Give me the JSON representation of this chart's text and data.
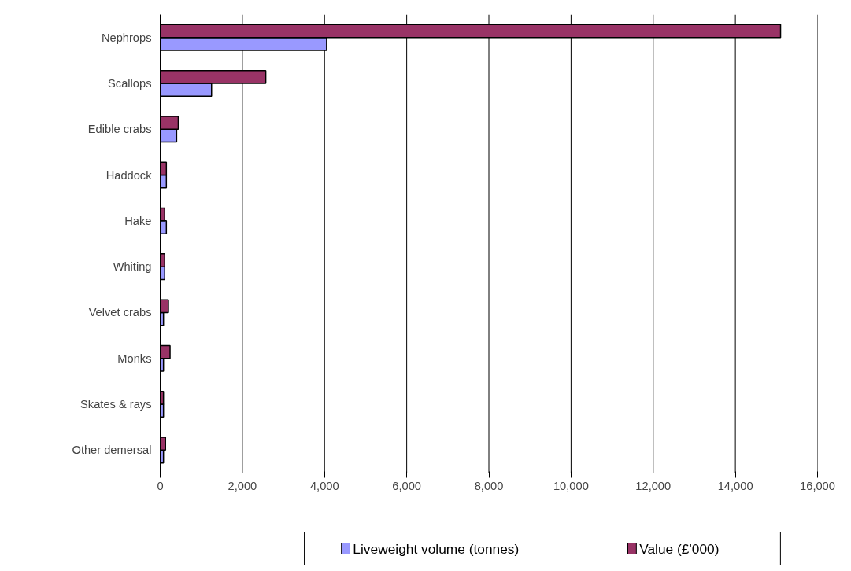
{
  "chart_data": {
    "type": "bar",
    "orientation": "horizontal",
    "categories": [
      "Nephrops",
      "Scallops",
      "Edible crabs",
      "Haddock",
      "Hake",
      "Whiting",
      "Velvet crabs",
      "Monks",
      "Skates & rays",
      "Other demersal"
    ],
    "series": [
      {
        "name": "Liveweight volume (tonnes)",
        "color": "#9999ff",
        "values": [
          4050,
          1250,
          400,
          150,
          150,
          110,
          80,
          80,
          80,
          80
        ]
      },
      {
        "name": "Value (£'000)",
        "color": "#993366",
        "values": [
          15100,
          2570,
          440,
          150,
          110,
          110,
          200,
          240,
          80,
          130
        ]
      }
    ],
    "xlim": [
      0,
      16000
    ],
    "xticks": [
      {
        "value": 0,
        "label": "0"
      },
      {
        "value": 2000,
        "label": "2,000"
      },
      {
        "value": 4000,
        "label": "4,000"
      },
      {
        "value": 6000,
        "label": "6,000"
      },
      {
        "value": 8000,
        "label": "8,000"
      },
      {
        "value": 10000,
        "label": "10,000"
      },
      {
        "value": 12000,
        "label": "12,000"
      },
      {
        "value": 14000,
        "label": "14,000"
      },
      {
        "value": 16000,
        "label": "16,000"
      }
    ],
    "grid": "x",
    "legend": "bottom"
  }
}
